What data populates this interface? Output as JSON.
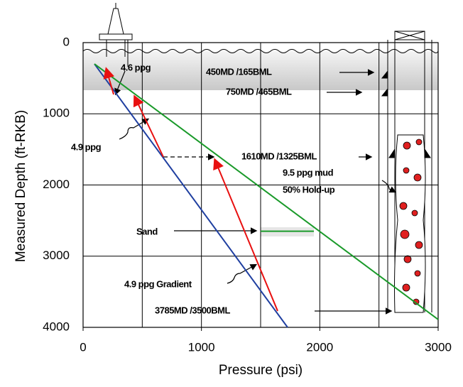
{
  "chart_data": {
    "type": "line",
    "x_label": "Pressure (psi)",
    "y_label": "Measured Depth (ft-RKB)",
    "xlim": [
      0,
      3000
    ],
    "xticks": [
      0,
      1000,
      2000,
      3000
    ],
    "ylim": [
      0,
      4000
    ],
    "yticks": [
      0,
      1000,
      2000,
      3000,
      4000
    ],
    "y_inverted": true,
    "grid": true,
    "x_grid_step": 500,
    "series": [
      {
        "color": "#1f3fa0",
        "x": [
          96,
          1728
        ],
        "values": [
          300,
          4000
        ]
      },
      {
        "color": "#1a9a2a",
        "x": [
          96,
          3000
        ],
        "values": [
          300,
          3890
        ]
      },
      {
        "color": "#e81010",
        "arrow": true,
        "x": [
          678,
          438
        ],
        "values": [
          1606,
          768
        ]
      },
      {
        "color": "#e81010",
        "arrow": true,
        "x": [
          1644,
          1116
        ],
        "values": [
          3770,
          1656
        ]
      },
      {
        "color": "#e81010",
        "arrow": true,
        "x": [
          258,
          198
        ],
        "values": [
          728,
          380
        ]
      },
      {
        "color": "#1a9a2a",
        "x": [
          1500,
          1950
        ],
        "values": [
          2650,
          2650
        ]
      }
    ],
    "annotations": [
      "4.6 ppg",
      "450MD /165BML",
      "750MD /465BML",
      "4.9 ppg",
      "1610MD /1325BML",
      "9.5 ppg mud",
      "50% Hold-up",
      "Sand",
      "4.9 ppg Gradient",
      "3785MD /3500BML"
    ]
  }
}
